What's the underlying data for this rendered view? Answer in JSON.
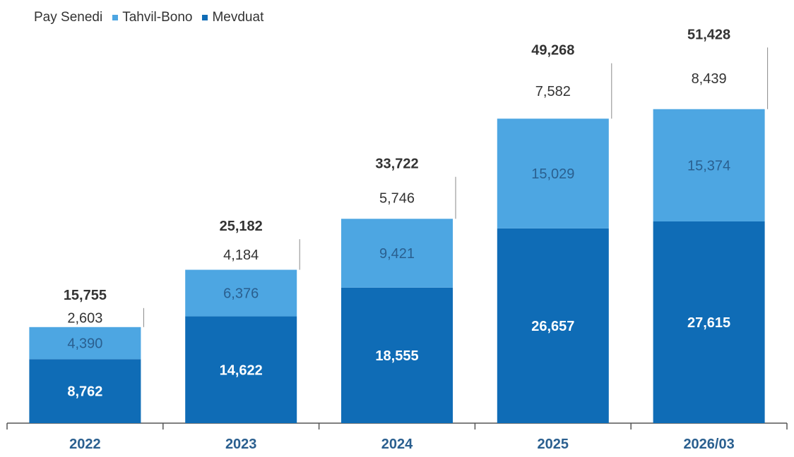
{
  "chart_data": {
    "type": "bar",
    "stacked": true,
    "categories": [
      "2022",
      "2023",
      "2024",
      "2025",
      "2026/03"
    ],
    "series": [
      {
        "name": "Mevduat",
        "color": "#0f6cb6",
        "label_color": "#ffffff",
        "values": [
          8762,
          14622,
          18555,
          26657,
          27615
        ]
      },
      {
        "name": "Tahvil-Bono",
        "color": "#4da6e2",
        "label_color": "#2a5f8f",
        "values": [
          4390,
          6376,
          9421,
          15029,
          15374
        ]
      },
      {
        "name": "Pay Senedi",
        "color": "#ffffff",
        "label_color": "#333333",
        "values": [
          2603,
          4184,
          5746,
          7582,
          8439
        ]
      }
    ],
    "value_labels": {
      "Mevduat": [
        "8,762",
        "14,622",
        "18,555",
        "26,657",
        "27,615"
      ],
      "Tahvil-Bono": [
        "4,390",
        "6,376",
        "9,421",
        "15,029",
        "15,374"
      ],
      "Pay Senedi": [
        "2,603",
        "4,184",
        "5,746",
        "7,582",
        "8,439"
      ]
    },
    "totals": [
      15755,
      25182,
      33722,
      49268,
      51428
    ],
    "total_labels": [
      "15,755",
      "25,182",
      "33,722",
      "49,268",
      "51,428"
    ],
    "legend": [
      {
        "label": "Pay Senedi",
        "color": "#ffffff",
        "swatch": false
      },
      {
        "label": "Tahvil-Bono",
        "color": "#4da6e2",
        "swatch": true
      },
      {
        "label": "Mevduat",
        "color": "#0f6cb6",
        "swatch": true
      }
    ],
    "legend_position": "top-left",
    "title": "",
    "xlabel": "",
    "ylabel": "",
    "ylim": [
      0,
      56000
    ],
    "grid": false,
    "tick_label_color": "#2a5f8f"
  }
}
